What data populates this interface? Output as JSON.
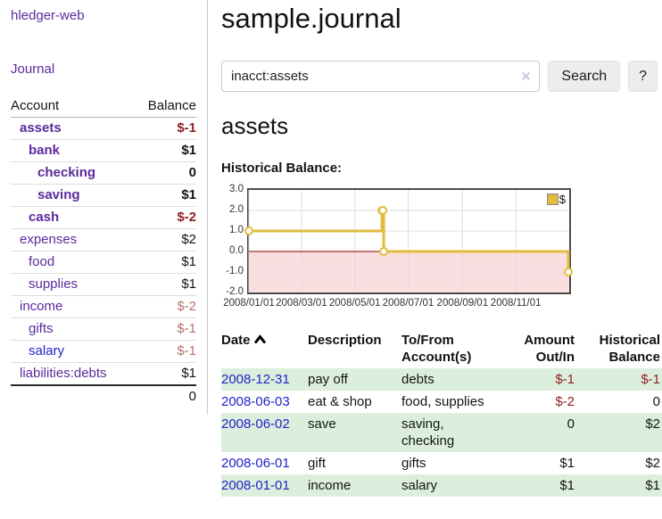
{
  "sidebar": {
    "brand": "hledger-web",
    "journal_link": "Journal",
    "accounts": {
      "header_account": "Account",
      "header_balance": "Balance",
      "rows": [
        {
          "name": "assets",
          "balance": "$-1"
        },
        {
          "name": "bank",
          "balance": "$1"
        },
        {
          "name": "checking",
          "balance": "0"
        },
        {
          "name": "saving",
          "balance": "$1"
        },
        {
          "name": "cash",
          "balance": "$-2"
        },
        {
          "name": "expenses",
          "balance": "$2"
        },
        {
          "name": "food",
          "balance": "$1"
        },
        {
          "name": "supplies",
          "balance": "$1"
        },
        {
          "name": "income",
          "balance": "$-2"
        },
        {
          "name": "gifts",
          "balance": "$-1"
        },
        {
          "name": "salary",
          "balance": "$-1"
        },
        {
          "name": "liabilities:debts",
          "balance": "$1"
        }
      ],
      "total": "0"
    }
  },
  "main": {
    "title": "sample.journal",
    "search": {
      "value": "inacct:assets",
      "clear_icon": "✕",
      "button": "Search",
      "help": "?"
    },
    "heading": "assets",
    "chart_title": "Historical Balance:",
    "register": {
      "headers": {
        "date": "Date",
        "description": "Description",
        "accounts": "To/From\nAccount(s)",
        "amount": "Amount\nOut/In",
        "balance": "Historical\nBalance"
      },
      "rows": [
        {
          "date": "2008-12-31",
          "description": "pay off",
          "accounts": "debts",
          "amount": "$-1",
          "balance": "$-1"
        },
        {
          "date": "2008-06-03",
          "description": "eat & shop",
          "accounts": "food, supplies",
          "amount": "$-2",
          "balance": "0"
        },
        {
          "date": "2008-06-02",
          "description": "save",
          "accounts": "saving, checking",
          "amount": "0",
          "balance": "$2"
        },
        {
          "date": "2008-06-01",
          "description": "gift",
          "accounts": "gifts",
          "amount": "$1",
          "balance": "$2"
        },
        {
          "date": "2008-01-01",
          "description": "income",
          "accounts": "salary",
          "amount": "$1",
          "balance": "$1"
        }
      ]
    }
  },
  "chart_data": {
    "type": "line",
    "step": true,
    "title": "Historical Balance:",
    "series": [
      {
        "name": "$",
        "color": "#e2bc3e",
        "points": [
          [
            "2008/01/01",
            1
          ],
          [
            "2008/06/01",
            2
          ],
          [
            "2008/06/02",
            2
          ],
          [
            "2008/06/03",
            0
          ],
          [
            "2008/12/31",
            -1
          ]
        ]
      }
    ],
    "x_range": [
      "2008/01/01",
      "2009/01/01"
    ],
    "x_ticks": [
      "2008/01/01",
      "2008/03/01",
      "2008/05/01",
      "2008/07/01",
      "2008/09/01",
      "2008/11/01"
    ],
    "y_ticks": [
      -2,
      -1,
      0,
      1,
      2,
      3
    ],
    "y_tick_labels": [
      "-2.0",
      "-1.0",
      "0.0",
      "1.0",
      "2.0",
      "3.0"
    ],
    "ylim": [
      -2,
      3
    ],
    "grid": true,
    "legend": [
      {
        "label": "$",
        "color": "#e2bc3e"
      }
    ],
    "legend_position": "top-right",
    "zero_line_color": "#8b0000",
    "negative_region_color": "#fbdee0"
  },
  "colors": {
    "link_purple": "#5b2a9b",
    "link_blue": "#2222cc",
    "negative_strong": "#8e2222",
    "negative_weak": "#b8706e",
    "row_stripe_green": "#dcefdc",
    "chart_line_gold": "#e2bc3e"
  }
}
